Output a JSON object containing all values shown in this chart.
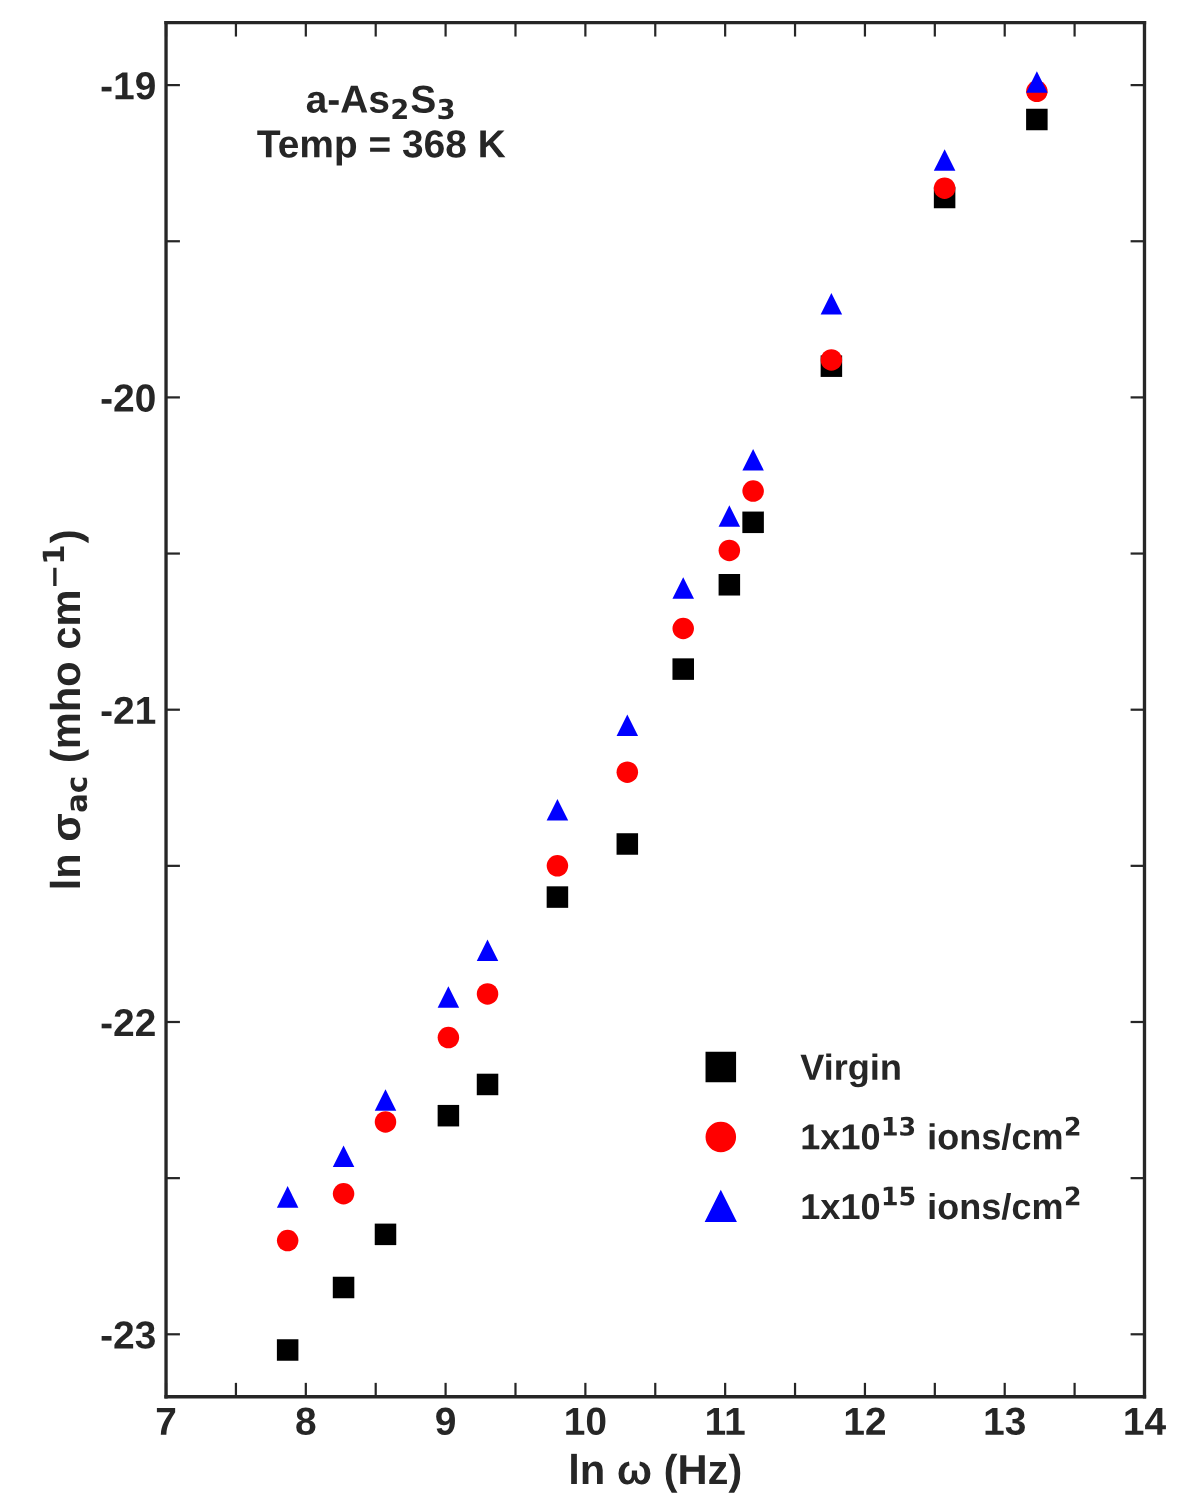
{
  "chart_data": {
    "type": "scatter",
    "xlabel": "ln ω (Hz)",
    "ylabel": "ln σ$_{ac}$ (mho cm$^{−1}$)",
    "annotations": [
      "a-As$_{2}$S$_{3}$",
      "Temp = 368 K"
    ],
    "x": [
      7.87,
      8.27,
      8.57,
      9.02,
      9.3,
      9.8,
      10.3,
      10.7,
      11.03,
      11.2,
      11.76,
      12.57,
      13.23
    ],
    "series": [
      {
        "name": "Virgin",
        "color": "#000000",
        "marker": "square",
        "values": [
          -23.05,
          -22.85,
          -22.68,
          -22.3,
          -22.2,
          -21.6,
          -21.43,
          -20.87,
          -20.6,
          -20.4,
          -19.9,
          -19.36,
          -19.11
        ]
      },
      {
        "name": "1x10$^{13}$ ions/cm$^{2}$",
        "color": "#ff0000",
        "marker": "circle",
        "values": [
          -22.7,
          -22.55,
          -22.32,
          -22.05,
          -21.91,
          -21.5,
          -21.2,
          -20.74,
          -20.49,
          -20.3,
          -19.88,
          -19.33,
          -19.02
        ]
      },
      {
        "name": "1x10$^{15}$ ions/cm$^{2}$",
        "color": "#0000ff",
        "marker": "triangle",
        "values": [
          -22.56,
          -22.43,
          -22.25,
          -21.92,
          -21.77,
          -21.32,
          -21.05,
          -20.61,
          -20.38,
          -20.2,
          -19.7,
          -19.24,
          -18.99
        ]
      }
    ],
    "xlim": [
      7,
      14
    ],
    "ylim": [
      -23.2,
      -18.8
    ],
    "xticks": [
      7,
      {
        "value": 7.5,
        "label": null
      },
      8,
      {
        "value": 8.5,
        "label": null
      },
      9,
      {
        "value": 9.5,
        "label": null
      },
      10,
      {
        "value": 10.5,
        "label": null
      },
      11,
      {
        "value": 11.5,
        "label": null
      },
      12,
      {
        "value": 12.5,
        "label": null
      },
      13,
      {
        "value": 13.5,
        "label": null
      },
      14
    ],
    "yticks": [
      -23,
      {
        "value": -22.5,
        "label": null
      },
      -22,
      {
        "value": -21.5,
        "label": null
      },
      -21,
      {
        "value": -20.5,
        "label": null
      },
      -20,
      {
        "value": -19.5,
        "label": null
      },
      -19
    ],
    "grid": false,
    "legend": "bottom right"
  }
}
